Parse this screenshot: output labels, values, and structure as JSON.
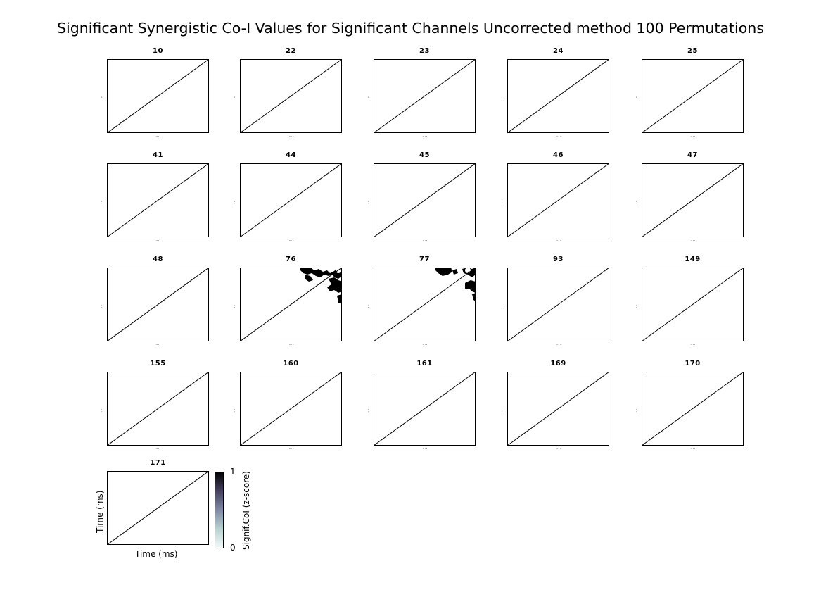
{
  "figure": {
    "title": "Significant Synergistic Co-I Values for Significant Channels Uncorrected method 100 Permutations"
  },
  "chart_data": {
    "type": "heatmap",
    "title": "Significant Synergistic Co-I Values for Significant Channels Uncorrected method 100 Permutations",
    "xlabel": "Time (ms)",
    "ylabel": "Time (ms)",
    "colorbar": {
      "label": "Signif.CoI (z-score)",
      "ticks": [
        "0",
        "1"
      ],
      "range": [
        0,
        1
      ],
      "colormap": [
        "#f4fafa",
        "#b9d3d0",
        "#7f8aa5",
        "#46405e",
        "#000000"
      ]
    },
    "panels": [
      {
        "channel": "10",
        "has_significant": false
      },
      {
        "channel": "22",
        "has_significant": false
      },
      {
        "channel": "23",
        "has_significant": false
      },
      {
        "channel": "24",
        "has_significant": false
      },
      {
        "channel": "25",
        "has_significant": false
      },
      {
        "channel": "41",
        "has_significant": false
      },
      {
        "channel": "44",
        "has_significant": false
      },
      {
        "channel": "45",
        "has_significant": false
      },
      {
        "channel": "46",
        "has_significant": false
      },
      {
        "channel": "47",
        "has_significant": false
      },
      {
        "channel": "48",
        "has_significant": false
      },
      {
        "channel": "76",
        "has_significant": true
      },
      {
        "channel": "77",
        "has_significant": true
      },
      {
        "channel": "93",
        "has_significant": false
      },
      {
        "channel": "149",
        "has_significant": false
      },
      {
        "channel": "155",
        "has_significant": false
      },
      {
        "channel": "160",
        "has_significant": false
      },
      {
        "channel": "161",
        "has_significant": false
      },
      {
        "channel": "169",
        "has_significant": false
      },
      {
        "channel": "170",
        "has_significant": false
      },
      {
        "channel": "171",
        "has_significant": false
      }
    ],
    "diagonal_line": true,
    "significant_color": "#000000"
  }
}
